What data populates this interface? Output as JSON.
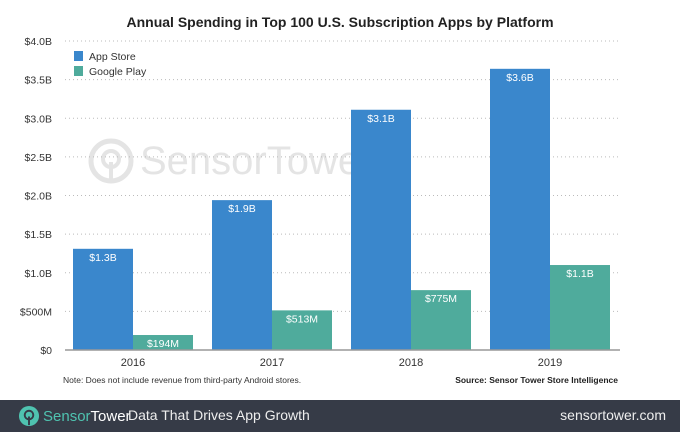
{
  "chart_data": {
    "type": "bar",
    "title": "Annual Spending in Top 100 U.S. Subscription Apps by Platform",
    "categories": [
      "2016",
      "2017",
      "2018",
      "2019"
    ],
    "series": [
      {
        "name": "App Store",
        "color": "#3a87cc",
        "values": [
          1.31,
          1.94,
          3.11,
          3.64
        ],
        "labels": [
          "$1.3B",
          "$1.9B",
          "$3.1B",
          "$3.6B"
        ]
      },
      {
        "name": "Google Play",
        "color": "#4fab9c",
        "values": [
          0.194,
          0.513,
          0.775,
          1.1
        ],
        "labels": [
          "$194M",
          "$513M",
          "$775M",
          "$1.1B"
        ]
      }
    ],
    "unit": "billion USD",
    "ylim": [
      0,
      4.0
    ],
    "yticks": [
      0,
      0.5,
      1.0,
      1.5,
      2.0,
      2.5,
      3.0,
      3.5,
      4.0
    ],
    "ytick_labels": [
      "$0",
      "$500M",
      "$1.0B",
      "$1.5B",
      "$2.0B",
      "$2.5B",
      "$3.0B",
      "$3.5B",
      "$4.0B"
    ],
    "grid": true,
    "legend_position": "top-left"
  },
  "note": "Note: Does not include revenue from third-party Android stores.",
  "source": "Source: Sensor Tower Store Intelligence",
  "watermark": {
    "sensor": "Sensor",
    "tower": "Tower"
  },
  "footer": {
    "brand_sensor": "Sensor",
    "brand_tower": "Tower",
    "tagline": "Data That Drives App Growth",
    "url": "sensortower.com",
    "brand_color": "#4fc3b0"
  }
}
